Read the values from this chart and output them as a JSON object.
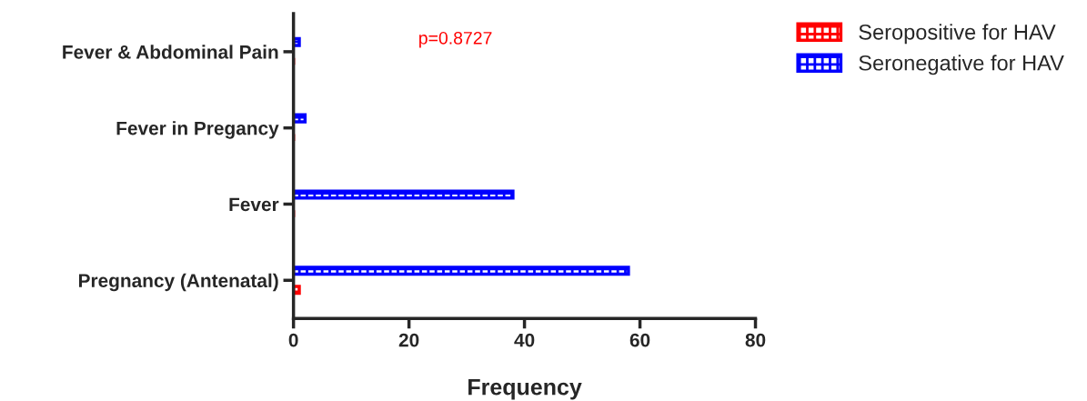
{
  "chart_data": {
    "type": "bar",
    "orientation": "horizontal",
    "xlabel": "Frequency",
    "categories": [
      "Fever & Abdominal Pain",
      "Fever in Pregancy",
      "Fever",
      "Pregnancy (Antenatal)"
    ],
    "series": [
      {
        "name": "Seropositive for HAV",
        "color": "#ff0000",
        "values": [
          0,
          0,
          0,
          1
        ]
      },
      {
        "name": "Seronegative for HAV",
        "color": "#0000ff",
        "values": [
          1,
          2,
          38,
          58
        ]
      }
    ],
    "xlim": [
      0,
      80
    ],
    "xticks": [
      0,
      20,
      40,
      60,
      80
    ],
    "legend": "top right",
    "grid": false,
    "annotations": [
      "p=0.8727"
    ]
  }
}
